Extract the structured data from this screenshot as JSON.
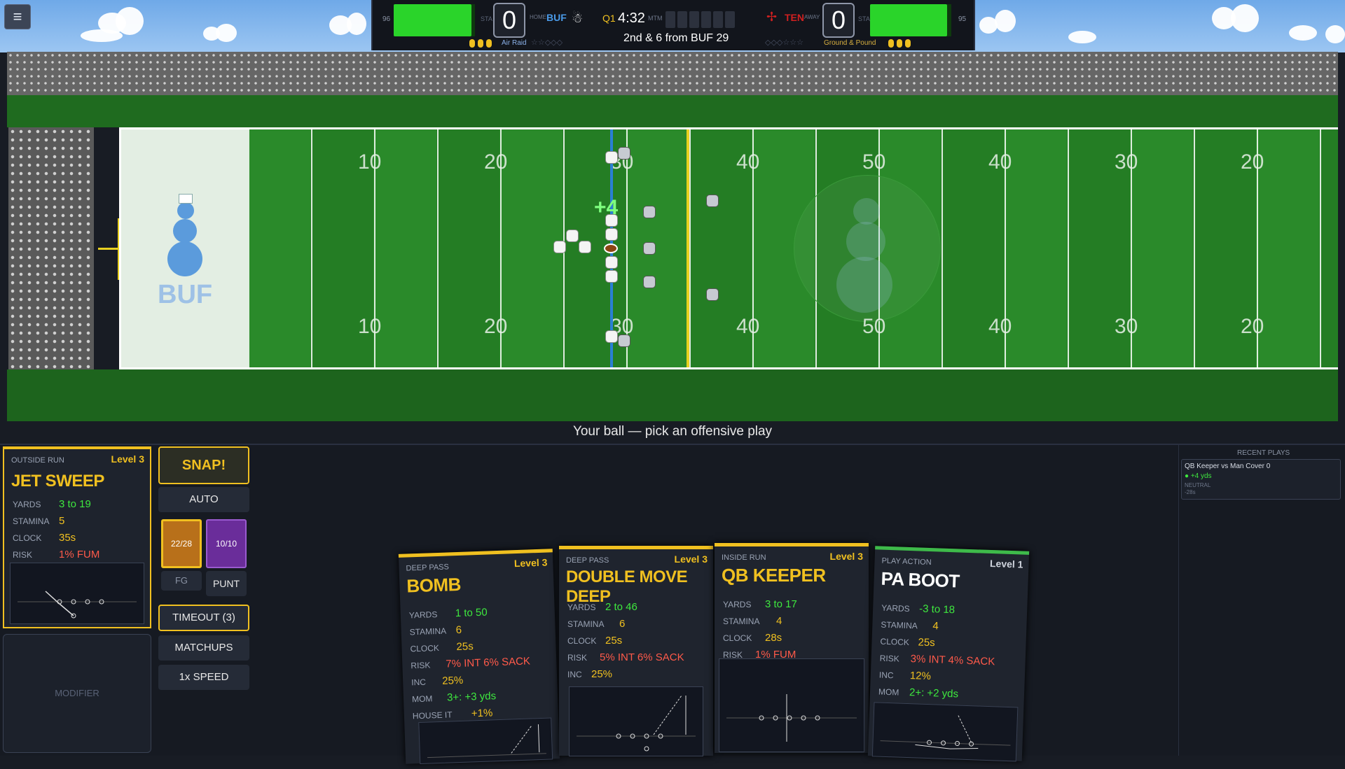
{
  "menu": {
    "icon": "≡"
  },
  "scoreboard": {
    "home": {
      "sta_num": "96",
      "sta_label": "STA",
      "side": "HOME",
      "team": "BUF",
      "score": "0",
      "plan": "Air Raid",
      "sta_fraction": 0.96,
      "timeouts": 3
    },
    "away": {
      "sta_num": "95",
      "sta_label": "STA",
      "side": "AWAY",
      "team": "TEN",
      "score": "0",
      "plan": "Ground & Pound",
      "sta_fraction": 0.95,
      "timeouts": 3
    },
    "quarter": "Q1",
    "clock": "4:32",
    "mtm_label": "MTM",
    "down": "2nd & 6 from BUF 29"
  },
  "field": {
    "endzone_team": "BUF",
    "yard_numbers_top": [
      "10",
      "20",
      "30",
      "40",
      "50",
      "40",
      "30",
      "20"
    ],
    "yard_numbers_bottom": [
      "10",
      "20",
      "30",
      "40",
      "50",
      "40",
      "30",
      "20"
    ],
    "gain": "+4"
  },
  "status": "Your ball — pick an offensive play",
  "selected": {
    "type": "OUTSIDE RUN",
    "level": "Level 3",
    "name": "JET SWEEP",
    "stats": [
      {
        "k": "YARDS",
        "v": "3 to 19",
        "c": "green"
      },
      {
        "k": "STAMINA",
        "v": "5",
        "c": "yellow"
      },
      {
        "k": "CLOCK",
        "v": "35s",
        "c": "yellow"
      },
      {
        "k": "RISK",
        "v": "1% FUM",
        "c": "red"
      }
    ]
  },
  "modifier": "MODIFIER",
  "controls": {
    "snap": "SNAP!",
    "auto": "AUTO",
    "fg_count": "22/28",
    "punt_count": "10/10",
    "fg": "FG",
    "punt": "PUNT",
    "timeout": "TIMEOUT (3)",
    "matchups": "MATCHUPS",
    "speed": "1x SPEED"
  },
  "cards": [
    {
      "type": "DEEP PASS",
      "level": "Level 3",
      "name": "BOMB",
      "stats": [
        {
          "k": "YARDS",
          "v": "1 to 50",
          "c": "green"
        },
        {
          "k": "STAMINA",
          "v": "6",
          "c": "yellow"
        },
        {
          "k": "CLOCK",
          "v": "25s",
          "c": "yellow"
        },
        {
          "k": "RISK",
          "v": "7% INT  6% SACK",
          "c": "red"
        },
        {
          "k": "INC",
          "v": "25%",
          "c": "yellow"
        },
        {
          "k": "MOM",
          "v": "3+: +3 yds",
          "c": "green"
        },
        {
          "k": "HOUSE IT",
          "v": "+1%",
          "c": "yellow"
        }
      ]
    },
    {
      "type": "DEEP PASS",
      "level": "Level 3",
      "name": "DOUBLE MOVE DEEP",
      "stats": [
        {
          "k": "YARDS",
          "v": "2 to 46",
          "c": "green"
        },
        {
          "k": "STAMINA",
          "v": "6",
          "c": "yellow"
        },
        {
          "k": "CLOCK",
          "v": "25s",
          "c": "yellow"
        },
        {
          "k": "RISK",
          "v": "5% INT  6% SACK",
          "c": "red"
        },
        {
          "k": "INC",
          "v": "25%",
          "c": "yellow"
        }
      ]
    },
    {
      "type": "INSIDE RUN",
      "level": "Level 3",
      "name": "QB KEEPER",
      "stats": [
        {
          "k": "YARDS",
          "v": "3 to 17",
          "c": "green"
        },
        {
          "k": "STAMINA",
          "v": "4",
          "c": "yellow"
        },
        {
          "k": "CLOCK",
          "v": "28s",
          "c": "yellow"
        },
        {
          "k": "RISK",
          "v": "1% FUM",
          "c": "red"
        }
      ]
    },
    {
      "type": "PLAY ACTION",
      "level": "Level 1",
      "name": "PA BOOT",
      "stats": [
        {
          "k": "YARDS",
          "v": "-3 to 18",
          "c": "green"
        },
        {
          "k": "STAMINA",
          "v": "4",
          "c": "yellow"
        },
        {
          "k": "CLOCK",
          "v": "25s",
          "c": "yellow"
        },
        {
          "k": "RISK",
          "v": "3% INT  4% SACK",
          "c": "red"
        },
        {
          "k": "INC",
          "v": "12%",
          "c": "yellow"
        },
        {
          "k": "MOM",
          "v": "2+: +2 yds",
          "c": "green"
        }
      ]
    }
  ],
  "recent": {
    "title": "RECENT PLAYS",
    "play": "QB Keeper vs Man Cover 0",
    "result": "● +4 yds",
    "tag": "NEUTRAL",
    "time": "-28s"
  },
  "colors": {
    "accent": "#f0c020",
    "stamina": "#2ad42a",
    "home": "#2a7fd4",
    "away": "#d02020"
  }
}
